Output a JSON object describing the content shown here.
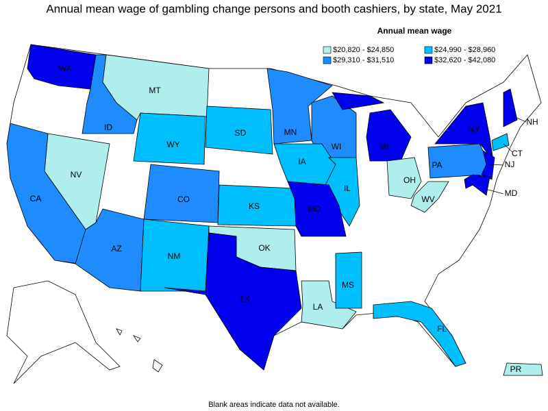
{
  "title": "Annual mean wage of gambling change persons and booth cashiers, by state, May 2021",
  "legend": {
    "title": "Annual mean wage",
    "items": [
      {
        "label": "$20,820 - $24,850",
        "color": "#b0eeee"
      },
      {
        "label": "$24,990 - $28,960",
        "color": "#00bfff"
      },
      {
        "label": "$29,310 - $31,510",
        "color": "#1e8cff"
      },
      {
        "label": "$32,620 - $42,080",
        "color": "#0000ee"
      }
    ]
  },
  "states": [
    {
      "label": "WA",
      "color": "#0000ee"
    },
    {
      "label": "ID",
      "color": "#1e8cff"
    },
    {
      "label": "MT",
      "color": "#b0eeee"
    },
    {
      "label": "WY",
      "color": "#00bfff"
    },
    {
      "label": "SD",
      "color": "#00bfff"
    },
    {
      "label": "MN",
      "color": "#1e8cff"
    },
    {
      "label": "WI",
      "color": "#1e8cff"
    },
    {
      "label": "MI",
      "color": "#0000ee"
    },
    {
      "label": "IA",
      "color": "#00bfff"
    },
    {
      "label": "IL",
      "color": "#00bfff"
    },
    {
      "label": "KS",
      "color": "#00bfff"
    },
    {
      "label": "MO",
      "color": "#0000ee"
    },
    {
      "label": "CO",
      "color": "#1e8cff"
    },
    {
      "label": "NV",
      "color": "#b0eeee"
    },
    {
      "label": "CA",
      "color": "#1e8cff"
    },
    {
      "label": "AZ",
      "color": "#1e8cff"
    },
    {
      "label": "NM",
      "color": "#00bfff"
    },
    {
      "label": "OK",
      "color": "#b0eeee"
    },
    {
      "label": "TX",
      "color": "#0000ee"
    },
    {
      "label": "LA",
      "color": "#b0eeee"
    },
    {
      "label": "MS",
      "color": "#00bfff"
    },
    {
      "label": "FL",
      "color": "#00bfff"
    },
    {
      "label": "OH",
      "color": "#b0eeee"
    },
    {
      "label": "WV",
      "color": "#b0eeee"
    },
    {
      "label": "PA",
      "color": "#1e8cff"
    },
    {
      "label": "NY",
      "color": "#0000ee"
    },
    {
      "label": "NJ",
      "color": "#0000ee"
    },
    {
      "label": "MD",
      "color": "#0000ee"
    },
    {
      "label": "CT",
      "color": "#00bfff"
    },
    {
      "label": "NH",
      "color": "#0000ee"
    },
    {
      "label": "PR",
      "color": "#b0eeee"
    }
  ],
  "note": "Blank areas indicate data not available."
}
